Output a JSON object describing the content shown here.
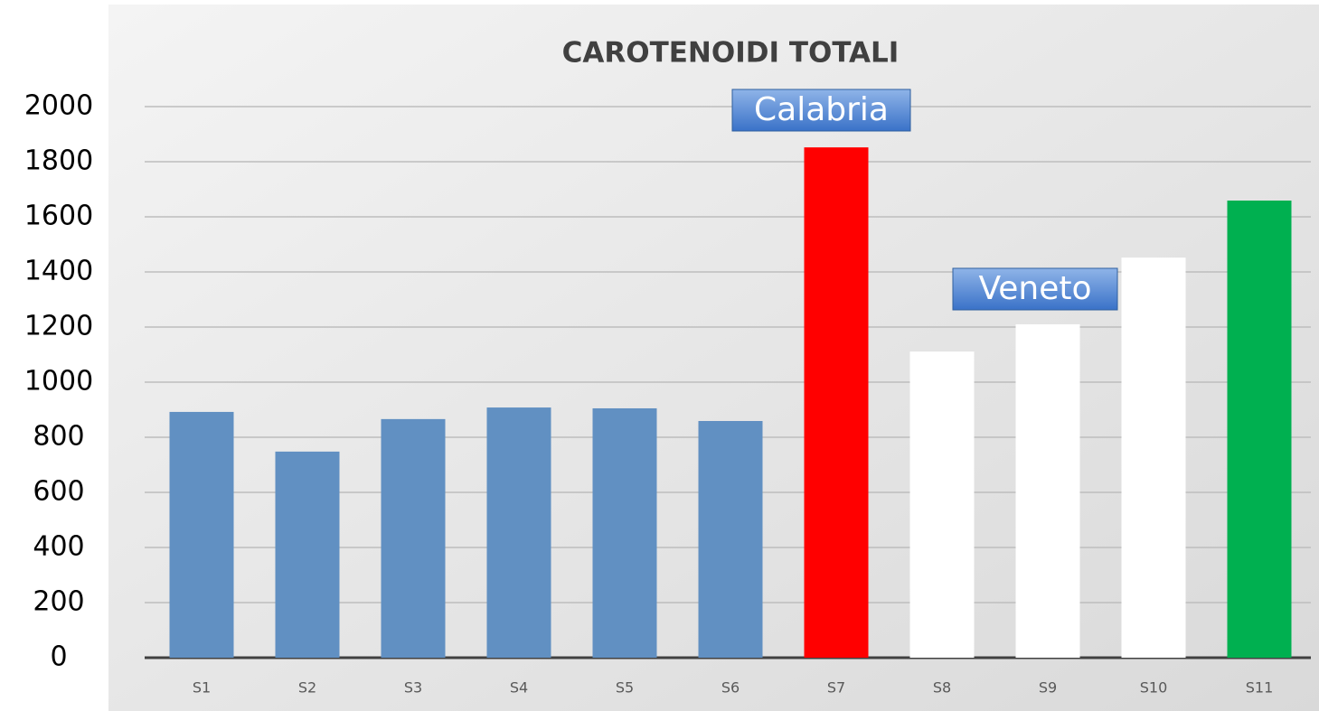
{
  "chart_data": {
    "type": "bar",
    "title": "CAROTENOIDI TOTALI",
    "categories": [
      "S1",
      "S2",
      "S3",
      "S4",
      "S5",
      "S6",
      "S7",
      "S8",
      "S9",
      "S10",
      "S11"
    ],
    "values": [
      892,
      748,
      866,
      908,
      905,
      859,
      1852,
      1111,
      1210,
      1452,
      1659
    ],
    "colors": [
      "#6190c2",
      "#6190c2",
      "#6190c2",
      "#6190c2",
      "#6190c2",
      "#6190c2",
      "#ff0000",
      "#ffffff",
      "#ffffff",
      "#ffffff",
      "#00b050"
    ],
    "ylim": [
      0,
      2000
    ],
    "yticks": [
      0,
      200,
      400,
      600,
      800,
      1000,
      1200,
      1400,
      1600,
      1800,
      2000
    ],
    "grid": true,
    "annotations": [
      "Calabria",
      "Veneto"
    ]
  }
}
